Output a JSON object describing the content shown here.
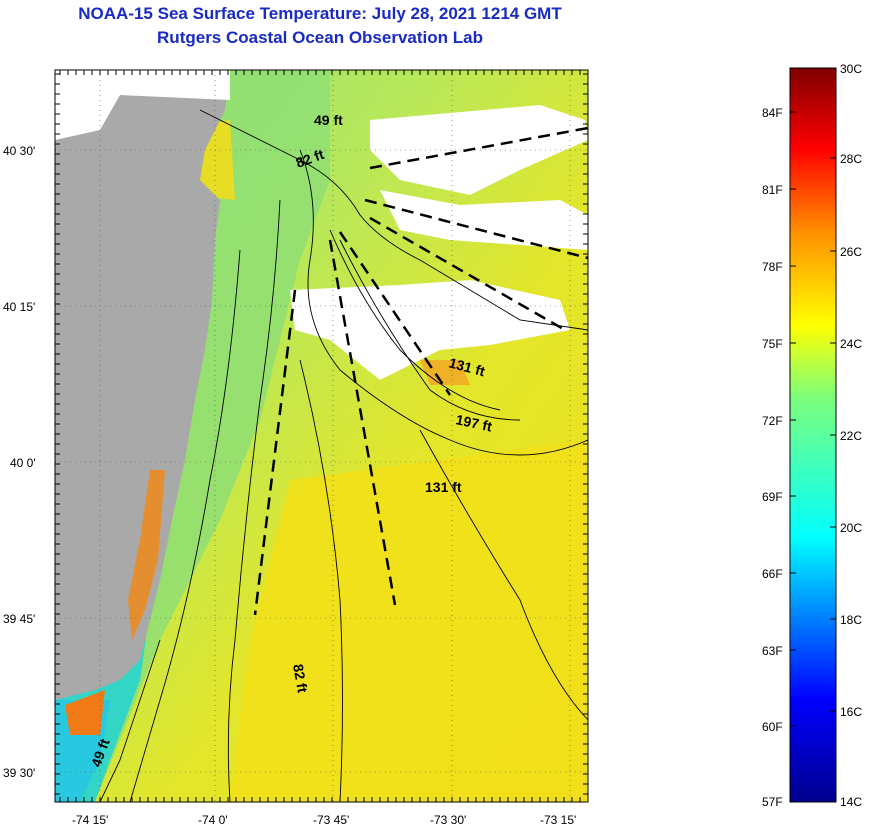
{
  "title": "NOAA-15 Sea Surface Temperature:  July 28, 2021 1214 GMT",
  "subtitle": "Rutgers Coastal Ocean Observation Lab",
  "lat_ticks": [
    "40 30'",
    "40 15'",
    "40 0'",
    "39 45'",
    "39 30'"
  ],
  "lon_ticks": [
    "-74 15'",
    "-74 0'",
    "-73 45'",
    "-73 30'",
    "-73 15'"
  ],
  "contour_labels": [
    "49 ft",
    "82 ft",
    "131 ft",
    "197 ft",
    "131 ft",
    "82 ft",
    "49 ft"
  ],
  "colorbar": {
    "fahrenheit": [
      "84F",
      "81F",
      "78F",
      "75F",
      "72F",
      "69F",
      "66F",
      "63F",
      "60F",
      "57F"
    ],
    "celsius": [
      "30C",
      "28C",
      "26C",
      "24C",
      "22C",
      "20C",
      "18C",
      "16C",
      "14C"
    ]
  },
  "colors": {
    "title": "#1a2bc4",
    "land": "#a9a9a9",
    "cloud": "#ffffff",
    "sst_warm": "#f2e21a",
    "sst_mid": "#9ee35a",
    "sst_cool": "#2fd6c4"
  }
}
